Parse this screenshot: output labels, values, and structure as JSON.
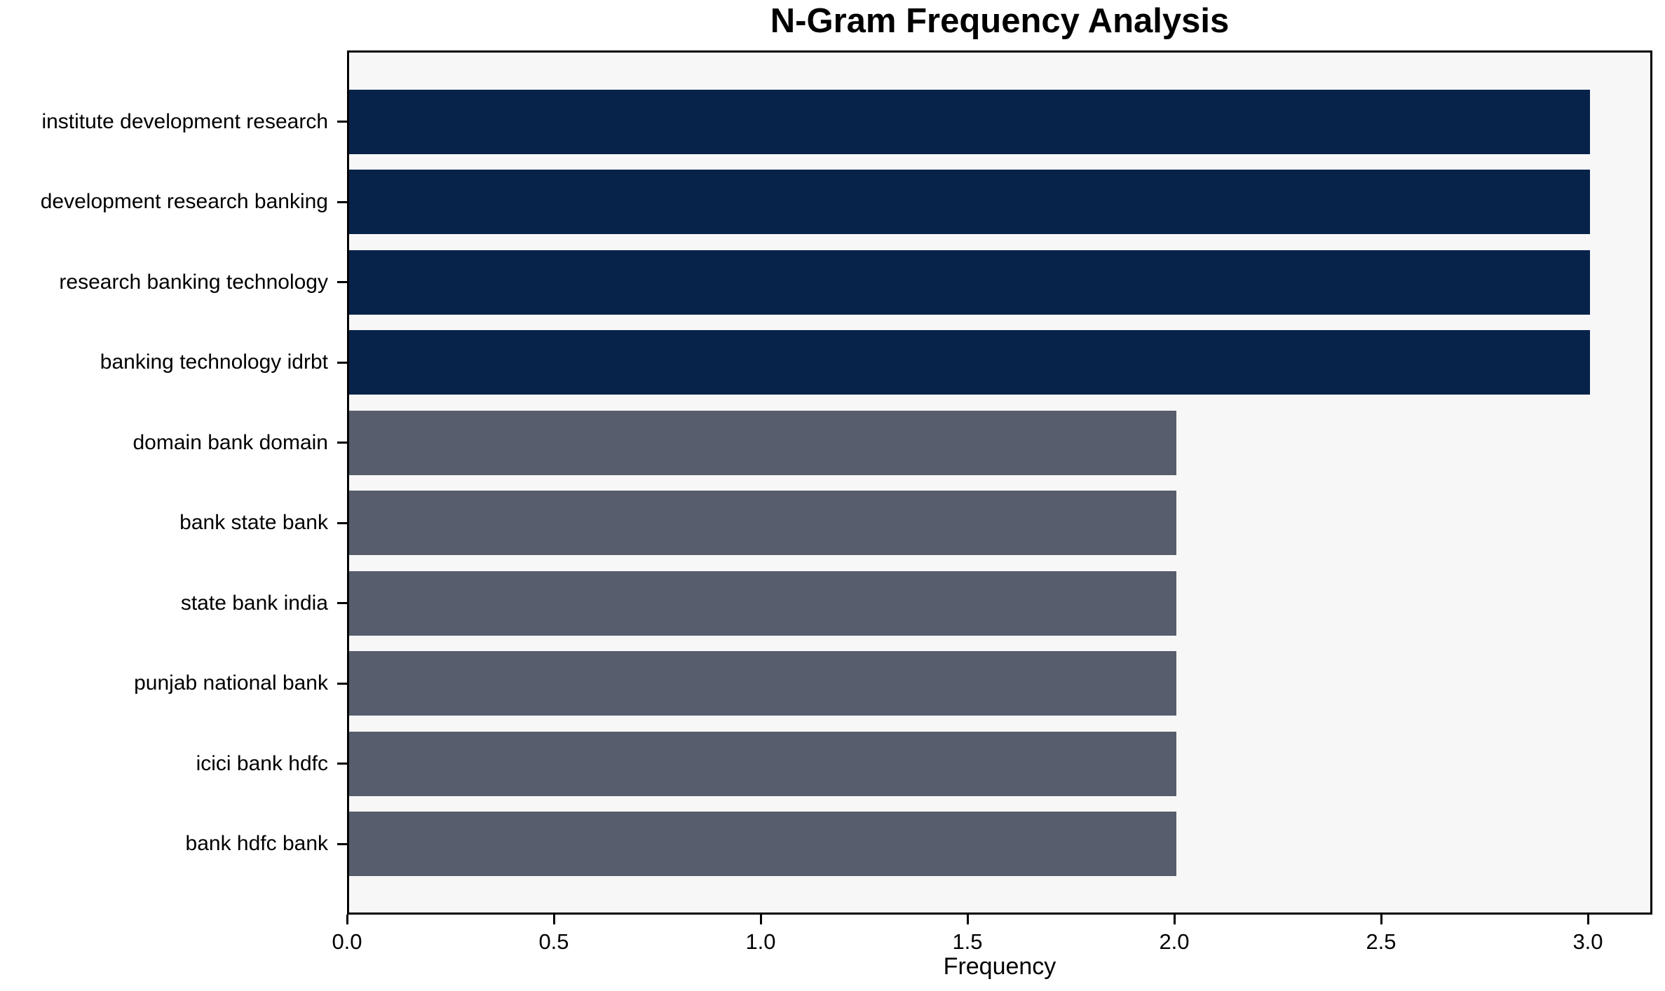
{
  "chart_data": {
    "type": "bar",
    "orientation": "horizontal",
    "title": "N-Gram Frequency Analysis",
    "xlabel": "Frequency",
    "ylabel": "",
    "categories": [
      "institute development research",
      "development research banking",
      "research banking technology",
      "banking technology idrbt",
      "domain bank domain",
      "bank state bank",
      "state bank india",
      "punjab national bank",
      "icici bank hdfc",
      "bank hdfc bank"
    ],
    "values": [
      3,
      3,
      3,
      3,
      2,
      2,
      2,
      2,
      2,
      2
    ],
    "bar_colors": [
      "#08234a",
      "#08234a",
      "#08234a",
      "#08234a",
      "#575d6c",
      "#575d6c",
      "#575d6c",
      "#575d6c",
      "#575d6c",
      "#575d6c"
    ],
    "xlim": [
      0,
      3.156
    ],
    "xticks": [
      0,
      0.5,
      1,
      1.5,
      2,
      2.5,
      3
    ],
    "xtick_labels": [
      "0.0",
      "0.5",
      "1.0",
      "1.5",
      "2.0",
      "2.5",
      "3.0"
    ],
    "grid": false,
    "legend": null,
    "colors": {
      "bar_high": "#08234a",
      "bar_low": "#575d6c",
      "plot_background": "#f7f7f8",
      "figure_background": "#ffffff",
      "spine": "#000000",
      "text": "#000000"
    }
  }
}
